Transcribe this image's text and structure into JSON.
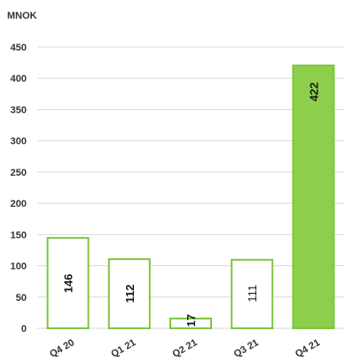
{
  "chart_data": {
    "type": "bar",
    "unit_label": "MNOK",
    "categories": [
      "Q4 20",
      "Q1 21",
      "Q2 21",
      "Q3 21",
      "Q4 21"
    ],
    "values": [
      146,
      112,
      17,
      111,
      422
    ],
    "data_labels": [
      "146",
      "112",
      "17",
      "111",
      "422"
    ],
    "bold_labels": [
      true,
      true,
      true,
      false,
      true
    ],
    "highlight": [
      false,
      false,
      false,
      false,
      true
    ],
    "ylim": [
      0,
      450
    ],
    "yticks": [
      0,
      50,
      100,
      150,
      200,
      250,
      300,
      350,
      400,
      450
    ],
    "grid": true,
    "colors": {
      "bar_outline": "#7dc63f",
      "bar_fill": "#ffffff",
      "highlight_fill": "#8dcf4a",
      "grid": "#d9d9d9"
    }
  }
}
